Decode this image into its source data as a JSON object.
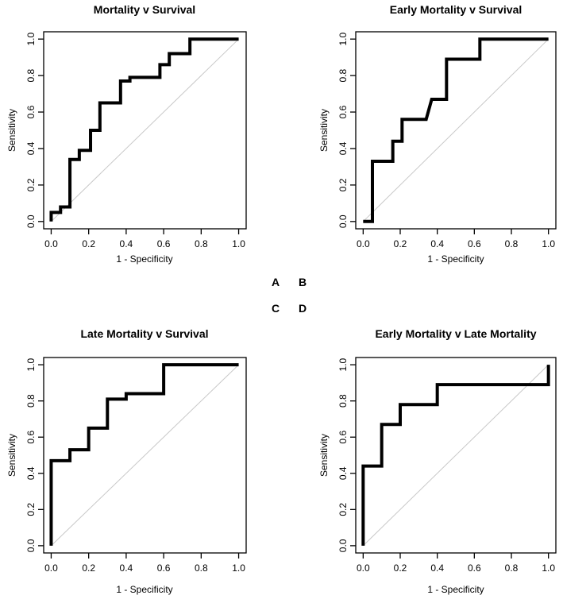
{
  "figure": {
    "panel_letters": [
      "A",
      "B",
      "C",
      "D"
    ],
    "colors": {
      "curve": "#000000",
      "diagonal": "#c8c8c8",
      "box": "#000000",
      "background": "#ffffff",
      "text": "#000000"
    }
  },
  "axis": {
    "tick_values": [
      0,
      0.2,
      0.4,
      0.6,
      0.8,
      1.0
    ],
    "tick_labels": [
      "0.0",
      "0.2",
      "0.4",
      "0.6",
      "0.8",
      "1.0"
    ],
    "xlim": [
      0,
      1
    ],
    "ylim": [
      0,
      1
    ]
  },
  "chart_data": [
    {
      "type": "line",
      "subtype": "roc-step-curve",
      "title": "Mortality v Survival",
      "xlabel": "1 - Specificity",
      "ylabel": "Sensitivity",
      "xlim": [
        0,
        1
      ],
      "ylim": [
        0,
        1
      ],
      "grid": false,
      "diagonal_reference_line": true,
      "points": [
        [
          0,
          0
        ],
        [
          0,
          0.05
        ],
        [
          0.05,
          0.05
        ],
        [
          0.05,
          0.08
        ],
        [
          0.1,
          0.08
        ],
        [
          0.1,
          0.34
        ],
        [
          0.15,
          0.34
        ],
        [
          0.15,
          0.39
        ],
        [
          0.21,
          0.39
        ],
        [
          0.21,
          0.5
        ],
        [
          0.26,
          0.5
        ],
        [
          0.26,
          0.65
        ],
        [
          0.37,
          0.65
        ],
        [
          0.37,
          0.77
        ],
        [
          0.42,
          0.77
        ],
        [
          0.42,
          0.79
        ],
        [
          0.58,
          0.79
        ],
        [
          0.58,
          0.86
        ],
        [
          0.63,
          0.86
        ],
        [
          0.63,
          0.92
        ],
        [
          0.74,
          0.92
        ],
        [
          0.74,
          1
        ],
        [
          1,
          1
        ]
      ]
    },
    {
      "type": "line",
      "subtype": "roc-step-curve",
      "title": "Early Mortality v Survival",
      "xlabel": "1 - Specificity",
      "ylabel": "Sensitivity",
      "xlim": [
        0,
        1
      ],
      "ylim": [
        0,
        1
      ],
      "grid": false,
      "diagonal_reference_line": true,
      "points": [
        [
          0,
          0
        ],
        [
          0.05,
          0
        ],
        [
          0.05,
          0.33
        ],
        [
          0.16,
          0.33
        ],
        [
          0.16,
          0.44
        ],
        [
          0.21,
          0.44
        ],
        [
          0.21,
          0.56
        ],
        [
          0.34,
          0.56
        ],
        [
          0.37,
          0.67
        ],
        [
          0.45,
          0.67
        ],
        [
          0.45,
          0.89
        ],
        [
          0.63,
          0.89
        ],
        [
          0.63,
          1
        ],
        [
          1,
          1
        ]
      ]
    },
    {
      "type": "line",
      "subtype": "roc-step-curve",
      "title": "Late Mortality v Survival",
      "xlabel": "1 - Specificity",
      "ylabel": "Sensitivity",
      "xlim": [
        0,
        1
      ],
      "ylim": [
        0,
        1
      ],
      "grid": false,
      "diagonal_reference_line": true,
      "points": [
        [
          0,
          0
        ],
        [
          0,
          0.47
        ],
        [
          0.1,
          0.47
        ],
        [
          0.1,
          0.53
        ],
        [
          0.2,
          0.53
        ],
        [
          0.2,
          0.65
        ],
        [
          0.3,
          0.65
        ],
        [
          0.3,
          0.81
        ],
        [
          0.4,
          0.81
        ],
        [
          0.4,
          0.84
        ],
        [
          0.6,
          0.84
        ],
        [
          0.6,
          1
        ],
        [
          1,
          1
        ]
      ]
    },
    {
      "type": "line",
      "subtype": "roc-step-curve",
      "title": "Early Mortality v Late Mortality",
      "xlabel": "1 - Specificity",
      "ylabel": "Sensitivity",
      "xlim": [
        0,
        1
      ],
      "ylim": [
        0,
        1
      ],
      "grid": false,
      "diagonal_reference_line": true,
      "points": [
        [
          0,
          0
        ],
        [
          0,
          0.44
        ],
        [
          0.1,
          0.44
        ],
        [
          0.1,
          0.67
        ],
        [
          0.2,
          0.67
        ],
        [
          0.2,
          0.78
        ],
        [
          0.4,
          0.78
        ],
        [
          0.4,
          0.89
        ],
        [
          1,
          0.89
        ],
        [
          1,
          1
        ]
      ]
    }
  ]
}
